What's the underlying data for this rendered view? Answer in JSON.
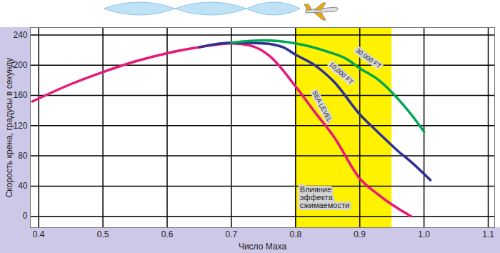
{
  "chart_data": {
    "type": "line",
    "xlabel": "Число Маха",
    "ylabel": "Скорость крена, градусы в секунду",
    "xlim": [
      0.387,
      1.11
    ],
    "ylim": [
      -15,
      250
    ],
    "xticks": [
      0.4,
      0.5,
      0.6,
      0.7,
      0.8,
      0.9,
      {
        "value": 1,
        "label": "1.0"
      },
      1.1
    ],
    "yticks": [
      0,
      40,
      80,
      120,
      160,
      200,
      240
    ],
    "grid": true,
    "shaded_region": {
      "x": [
        0.8,
        0.95
      ],
      "label": "Влияние эффекта сжимаемости",
      "color": "#fff200"
    },
    "series": [
      {
        "name": "SEA LEVEL",
        "color": "#e6197a",
        "x": [
          0.39,
          0.45,
          0.5,
          0.55,
          0.6,
          0.65,
          0.7,
          0.73,
          0.76,
          0.8,
          0.83,
          0.86,
          0.9,
          0.93,
          0.96,
          0.98
        ],
        "values": [
          152,
          175,
          191,
          205,
          216,
          224,
          229,
          226,
          212,
          172,
          138,
          105,
          50,
          28,
          10,
          0
        ]
      },
      {
        "name": "10,000 FT",
        "color": "#2e3192",
        "x": [
          0.65,
          0.7,
          0.75,
          0.78,
          0.8,
          0.83,
          0.86,
          0.9,
          0.93,
          0.96,
          0.98,
          1.01
        ],
        "values": [
          224,
          230,
          229,
          224,
          214,
          200,
          178,
          135,
          110,
          86,
          72,
          48
        ]
      },
      {
        "name": "30,000 FT",
        "color": "#00a651",
        "x": [
          0.7,
          0.75,
          0.8,
          0.85,
          0.88,
          0.9,
          0.93,
          0.96,
          0.98,
          1.0
        ],
        "values": [
          230,
          233,
          229,
          218,
          208,
          196,
          180,
          155,
          135,
          112
        ]
      }
    ]
  }
}
